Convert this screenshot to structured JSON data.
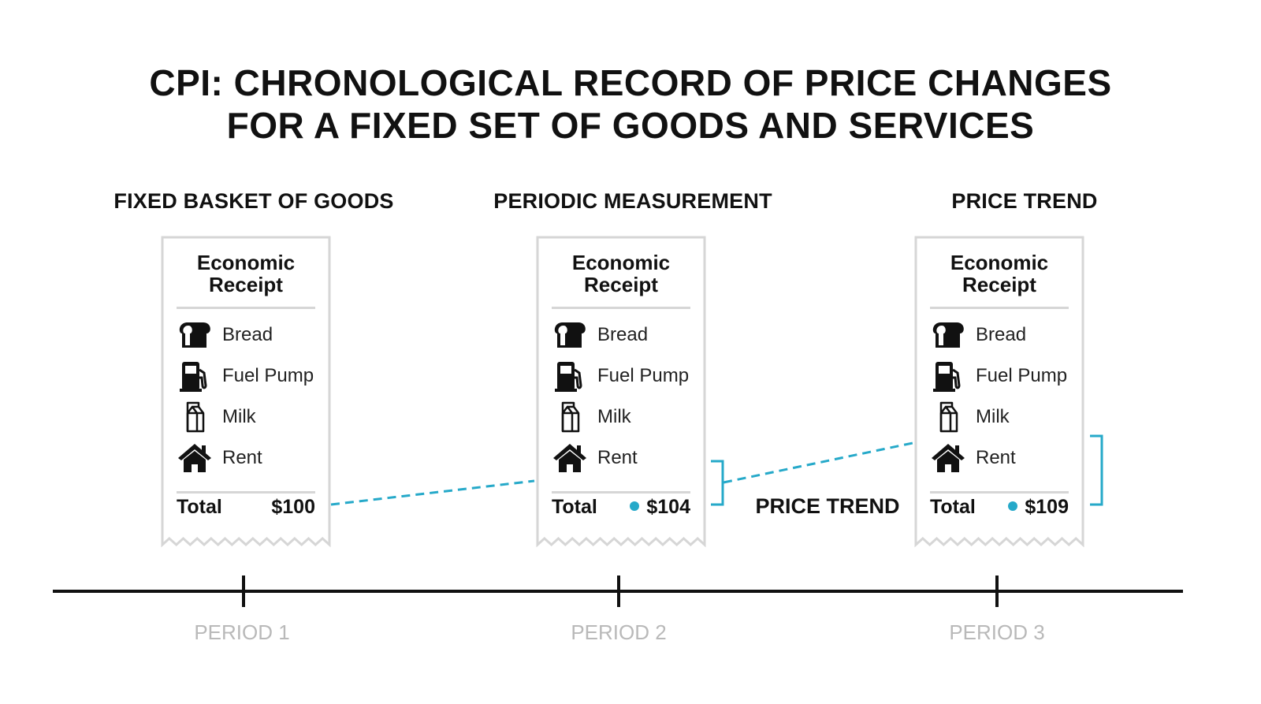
{
  "title": {
    "line1": "CPI: CHRONOLOGICAL RECORD OF PRICE CHANGES",
    "line2": "FOR A FIXED SET OF GOODS AND SERVICES"
  },
  "sections": [
    {
      "heading": "FIXED BASKET OF GOODS"
    },
    {
      "heading": "PERIODIC MEASUREMENT"
    },
    {
      "heading": "PRICE TREND"
    }
  ],
  "receipt_title": {
    "line1": "Economic",
    "line2": "Receipt"
  },
  "items": [
    {
      "icon": "bread-icon",
      "label": "Bread"
    },
    {
      "icon": "fuel-pump-icon",
      "label": "Fuel Pump"
    },
    {
      "icon": "milk-carton-icon",
      "label": "Milk"
    },
    {
      "icon": "house-icon",
      "label": "Rent"
    }
  ],
  "receipts": [
    {
      "total_label": "Total",
      "total_value": "$100",
      "marker": false
    },
    {
      "total_label": "Total",
      "total_value": "$104",
      "marker": true
    },
    {
      "total_label": "Total",
      "total_value": "$109",
      "marker": true
    }
  ],
  "trend_label": "PRICE TREND",
  "periods": [
    "PERIOD 1",
    "PERIOD 2",
    "PERIOD 3"
  ],
  "colors": {
    "accent": "#26a9c9",
    "text": "#111111",
    "receipt_border": "#d6d6d6",
    "period_label": "#b9b9b9"
  }
}
